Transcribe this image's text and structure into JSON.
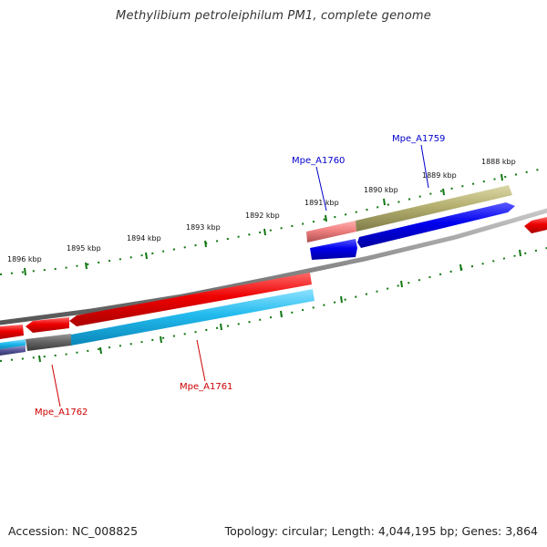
{
  "title": "Methylibium petroleiphilum PM1, complete genome",
  "footer": {
    "accession": "Accession: NC_008825",
    "summary": "Topology: circular; Length: 4,044,195 bp; Genes: 3,864"
  },
  "ticks": [
    "1896 kbp",
    "1895 kbp",
    "1894 kbp",
    "1893 kbp",
    "1892 kbp",
    "1891 kbp",
    "1890 kbp",
    "1889 kbp",
    "1888 kbp"
  ],
  "gene_labels": {
    "mpe_a1759": "Mpe_A1759",
    "mpe_a1760": "Mpe_A1760",
    "mpe_a1761": "Mpe_A1761",
    "mpe_a1762": "Mpe_A1762"
  },
  "colors": {
    "forward_label": "#0000cc",
    "reverse_label": "#cc0000",
    "red_gene": "#ee0000",
    "blue_gene": "#0000ee",
    "cyan_gene": "#22bbee",
    "olive_gene": "#b5b070",
    "pink_gene": "#f08080",
    "grey_gene": "#666666",
    "backbone": "#808080",
    "tick_green": "#117711"
  }
}
